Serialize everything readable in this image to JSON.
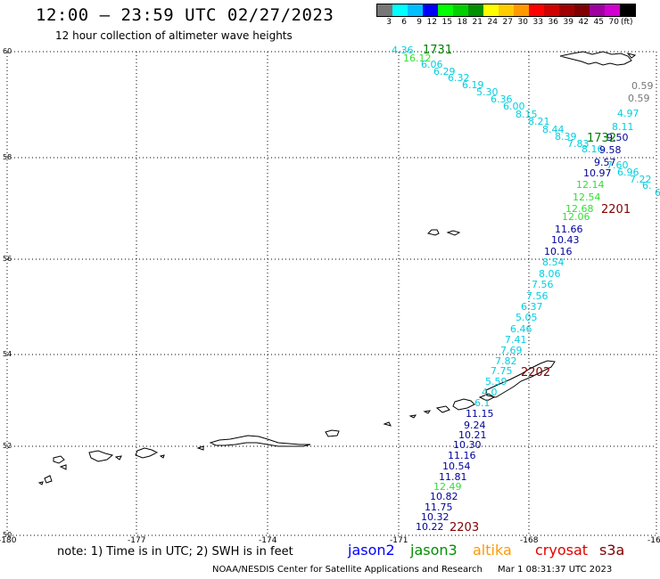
{
  "header": {
    "title": "12:00 – 23:59 UTC 02/27/2023",
    "subtitle": "12 hour collection of altimeter wave heights"
  },
  "legend": {
    "colors": [
      "#777777",
      "#00ffff",
      "#00bfff",
      "#0000ff",
      "#00ff00",
      "#00d000",
      "#009000",
      "#ffff00",
      "#ffcc00",
      "#ff9900",
      "#ff0000",
      "#d00000",
      "#a00000",
      "#800000",
      "#a000a0",
      "#d000d0",
      "#000000"
    ],
    "labels": [
      "3",
      "6",
      "9",
      "12",
      "15",
      "18",
      "21",
      "24",
      "27",
      "30",
      "33",
      "36",
      "39",
      "42",
      "45",
      "70"
    ],
    "unit": "(ft)"
  },
  "map": {
    "lat_ticks": [
      "60",
      "58",
      "56",
      "54",
      "52",
      "50"
    ],
    "lon_ticks": [
      "-180",
      "-177",
      "-174",
      "-171",
      "-168",
      "-16"
    ],
    "track_labels": [
      {
        "text": "1731",
        "color": "#008000"
      },
      {
        "text": "1732",
        "color": "#008000"
      },
      {
        "text": "2201",
        "color": "#800000"
      },
      {
        "text": "2202",
        "color": "#800000"
      },
      {
        "text": "2203",
        "color": "#800000"
      }
    ],
    "observations": [
      {
        "text": "4.36",
        "color": "#00cfe0"
      },
      {
        "text": "16.12",
        "color": "#33dd33"
      },
      {
        "text": "6.06",
        "color": "#00cfe0"
      },
      {
        "text": "6.29",
        "color": "#00cfe0"
      },
      {
        "text": "6.32",
        "color": "#00cfe0"
      },
      {
        "text": "6.19",
        "color": "#00cfe0"
      },
      {
        "text": "5.30",
        "color": "#00cfe0"
      },
      {
        "text": "6.36",
        "color": "#00cfe0"
      },
      {
        "text": "6.00",
        "color": "#00cfe0"
      },
      {
        "text": "8.15",
        "color": "#00cfe0"
      },
      {
        "text": "8.21",
        "color": "#00cfe0"
      },
      {
        "text": "8.44",
        "color": "#00cfe0"
      },
      {
        "text": "8.39",
        "color": "#00cfe0"
      },
      {
        "text": "7.83",
        "color": "#00cfe0"
      },
      {
        "text": "8.16",
        "color": "#00cfe0"
      },
      {
        "text": "9.58",
        "color": "#000099"
      },
      {
        "text": "9.50",
        "color": "#000099"
      },
      {
        "text": "9.57",
        "color": "#000099"
      },
      {
        "text": "10.97",
        "color": "#000099"
      },
      {
        "text": "7.60",
        "color": "#00cfe0"
      },
      {
        "text": "6.96",
        "color": "#00cfe0"
      },
      {
        "text": "7.22",
        "color": "#00cfe0"
      },
      {
        "text": "6.",
        "color": "#00cfe0"
      },
      {
        "text": "6",
        "color": "#00cfe0"
      },
      {
        "text": "0.59",
        "color": "#777777"
      },
      {
        "text": "0.59",
        "color": "#777777"
      },
      {
        "text": "4.97",
        "color": "#00cfe0"
      },
      {
        "text": "8.11",
        "color": "#00cfe0"
      },
      {
        "text": "12.14",
        "color": "#33dd33"
      },
      {
        "text": "12.54",
        "color": "#33dd33"
      },
      {
        "text": "12.68",
        "color": "#33dd33"
      },
      {
        "text": "12.06",
        "color": "#33dd33"
      },
      {
        "text": "11.66",
        "color": "#000099"
      },
      {
        "text": "10.43",
        "color": "#000099"
      },
      {
        "text": "10.16",
        "color": "#000099"
      },
      {
        "text": "8.54",
        "color": "#00cfe0"
      },
      {
        "text": "8.06",
        "color": "#00cfe0"
      },
      {
        "text": "7.56",
        "color": "#00cfe0"
      },
      {
        "text": "7.56",
        "color": "#00cfe0"
      },
      {
        "text": "6.37",
        "color": "#00cfe0"
      },
      {
        "text": "5.05",
        "color": "#00cfe0"
      },
      {
        "text": "6.46",
        "color": "#00cfe0"
      },
      {
        "text": "7.41",
        "color": "#00cfe0"
      },
      {
        "text": "7.69",
        "color": "#00cfe0"
      },
      {
        "text": "7.82",
        "color": "#00cfe0"
      },
      {
        "text": "7.75",
        "color": "#00cfe0"
      },
      {
        "text": "5.59",
        "color": "#00cfe0"
      },
      {
        "text": "4.0",
        "color": "#00cfe0"
      },
      {
        "text": "6.1",
        "color": "#00cfe0"
      },
      {
        "text": "11.15",
        "color": "#000099"
      },
      {
        "text": "9.24",
        "color": "#000099"
      },
      {
        "text": "10.21",
        "color": "#000099"
      },
      {
        "text": "10.30",
        "color": "#000099"
      },
      {
        "text": "11.16",
        "color": "#000099"
      },
      {
        "text": "10.54",
        "color": "#000099"
      },
      {
        "text": "11.81",
        "color": "#000099"
      },
      {
        "text": "12.49",
        "color": "#33dd33"
      },
      {
        "text": "10.82",
        "color": "#000099"
      },
      {
        "text": "11.75",
        "color": "#000099"
      },
      {
        "text": "10.32",
        "color": "#000099"
      },
      {
        "text": "10.22",
        "color": "#000099"
      }
    ]
  },
  "note": "note: 1) Time is in UTC; 2) SWH is in feet",
  "satellites": [
    {
      "name": "jason2",
      "color": "#0000ff"
    },
    {
      "name": "jason3",
      "color": "#009000"
    },
    {
      "name": "altika",
      "color": "#ff9900"
    },
    {
      "name": "cryosat",
      "color": "#e00000"
    },
    {
      "name": "s3a",
      "color": "#800000"
    }
  ],
  "footer": {
    "credit": "NOAA/NESDIS Center for Satellite Applications and Research",
    "timestamp": "Mar  1 08:31:37 UTC 2023"
  }
}
